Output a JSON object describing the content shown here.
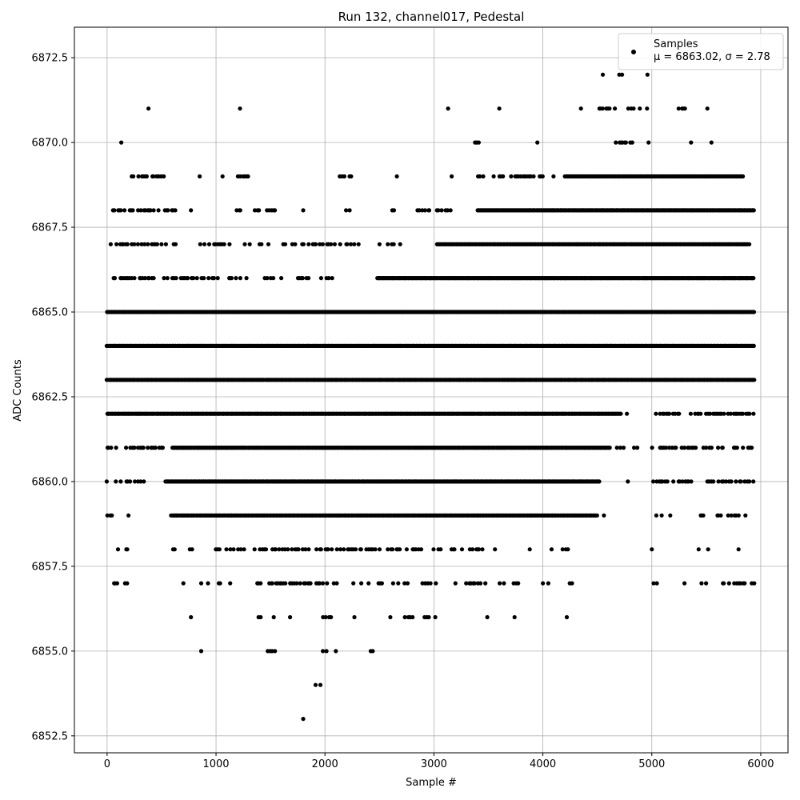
{
  "chart_data": {
    "type": "scatter",
    "title": "Run 132, channel017, Pedestal",
    "xlabel": "Sample #",
    "ylabel": "ADC Counts",
    "xlim": [
      -300,
      6250
    ],
    "ylim": [
      6852.0,
      6873.4
    ],
    "xticks": [
      0,
      1000,
      2000,
      3000,
      4000,
      5000,
      6000
    ],
    "xtick_labels": [
      "0",
      "1000",
      "2000",
      "3000",
      "4000",
      "5000",
      "6000"
    ],
    "yticks": [
      6852.5,
      6855.0,
      6857.5,
      6860.0,
      6862.5,
      6865.0,
      6867.5,
      6870.0,
      6872.5
    ],
    "ytick_labels": [
      "6852.5",
      "6855.0",
      "6857.5",
      "6860.0",
      "6862.5",
      "6865.0",
      "6867.5",
      "6870.0",
      "6872.5"
    ],
    "grid": true,
    "legend": {
      "placement": "top-right",
      "entries": [
        "Samples",
        "μ = 6863.02, σ = 2.78"
      ]
    },
    "series": [
      {
        "name": "Samples",
        "color": "#000000",
        "n_samples": 5950,
        "value_range": [
          6853,
          6872
        ],
        "level_spans": [
          {
            "y": 6853,
            "x": [
              [
                1800,
                1800
              ]
            ]
          },
          {
            "y": 6854,
            "x": [
              [
                1920,
                1980
              ]
            ]
          },
          {
            "y": 6855,
            "x": [
              [
                870,
                890
              ],
              [
                1430,
                1560
              ],
              [
                1980,
                2030
              ],
              [
                2100,
                2100
              ],
              [
                2420,
                2460
              ]
            ]
          },
          {
            "y": 6856,
            "x": [
              [
                770,
                770
              ],
              [
                1380,
                1460
              ],
              [
                1530,
                1530
              ],
              [
                1680,
                1680
              ],
              [
                1980,
                2070
              ],
              [
                2270,
                2270
              ],
              [
                2600,
                2600
              ],
              [
                2730,
                2820
              ],
              [
                2920,
                3030
              ],
              [
                3490,
                3490
              ],
              [
                3740,
                3740
              ],
              [
                4220,
                4220
              ]
            ]
          },
          {
            "y": 6857,
            "x": [
              [
                60,
                120
              ],
              [
                170,
                190
              ],
              [
                700,
                700
              ],
              [
                870,
                890
              ],
              [
                930,
                1050
              ],
              [
                1130,
                1130
              ],
              [
                1360,
                2400
              ],
              [
                2400,
                2780
              ],
              [
                2900,
                3020
              ],
              [
                3200,
                3500
              ],
              [
                3600,
                3800
              ],
              [
                4000,
                4050
              ],
              [
                4250,
                4300
              ],
              [
                5020,
                5060
              ],
              [
                5300,
                5300
              ],
              [
                5460,
                5500
              ],
              [
                5650,
                5940
              ]
            ]
          },
          {
            "y": 6858,
            "x": [
              [
                100,
                100
              ],
              [
                170,
                200
              ],
              [
                600,
                620
              ],
              [
                700,
                780
              ],
              [
                1000,
                1260
              ],
              [
                1360,
                2540
              ],
              [
                2560,
                2900
              ],
              [
                3000,
                3460
              ],
              [
                3560,
                3560
              ],
              [
                3880,
                3880
              ],
              [
                4080,
                4080
              ],
              [
                4180,
                4230
              ],
              [
                5000,
                5000
              ],
              [
                5400,
                5620
              ],
              [
                5800,
                5820
              ]
            ]
          },
          {
            "y": 6859,
            "x": [
              [
                0,
                60
              ],
              [
                130,
                150
              ],
              [
                200,
                250
              ],
              [
                590,
                3000
              ],
              [
                3000,
                4500
              ],
              [
                4560,
                4560
              ],
              [
                5040,
                5200
              ],
              [
                5380,
                5500
              ],
              [
                5600,
                5870
              ]
            ]
          },
          {
            "y": 6860,
            "x": [
              [
                0,
                40
              ],
              [
                80,
                350
              ],
              [
                540,
                4520
              ],
              [
                4780,
                4780
              ],
              [
                5020,
                5940
              ]
            ]
          },
          {
            "y": 6861,
            "x": [
              [
                0,
                520
              ],
              [
                600,
                4620
              ],
              [
                4680,
                4750
              ],
              [
                4800,
                4870
              ],
              [
                5000,
                5940
              ]
            ]
          },
          {
            "y": 6862,
            "x": [
              [
                0,
                4720
              ],
              [
                4760,
                4780
              ],
              [
                4850,
                4860
              ],
              [
                5000,
                5940
              ]
            ]
          },
          {
            "y": 6863,
            "x": [
              [
                0,
                5940
              ]
            ]
          },
          {
            "y": 6864,
            "x": [
              [
                0,
                5940
              ]
            ]
          },
          {
            "y": 6865,
            "x": [
              [
                0,
                5940
              ]
            ]
          },
          {
            "y": 6866,
            "x": [
              [
                40,
                1030
              ],
              [
                1100,
                1300
              ],
              [
                1450,
                1850
              ],
              [
                1950,
                2100
              ],
              [
                2480,
                5940
              ]
            ]
          },
          {
            "y": 6867,
            "x": [
              [
                40,
                660
              ],
              [
                820,
                1160
              ],
              [
                1230,
                1500
              ],
              [
                1600,
                2350
              ],
              [
                2500,
                2700
              ],
              [
                3030,
                5900
              ]
            ]
          },
          {
            "y": 6868,
            "x": [
              [
                50,
                630
              ],
              [
                770,
                770
              ],
              [
                1130,
                1260
              ],
              [
                1350,
                1550
              ],
              [
                1800,
                1800
              ],
              [
                2180,
                2250
              ],
              [
                2600,
                2680
              ],
              [
                2850,
                3160
              ],
              [
                3400,
                5940
              ]
            ]
          },
          {
            "y": 6869,
            "x": [
              [
                220,
                620
              ],
              [
                850,
                850
              ],
              [
                1060,
                1060
              ],
              [
                1200,
                1300
              ],
              [
                2140,
                2240
              ],
              [
                2660,
                2660
              ],
              [
                3160,
                3180
              ],
              [
                3400,
                3460
              ],
              [
                3550,
                4100
              ],
              [
                4200,
                5840
              ]
            ]
          },
          {
            "y": 6870,
            "x": [
              [
                130,
                130
              ],
              [
                420,
                450
              ],
              [
                3380,
                3420
              ],
              [
                3950,
                4000
              ],
              [
                4640,
                4820
              ],
              [
                4970,
                4970
              ],
              [
                5360,
                5360
              ],
              [
                5530,
                5550
              ]
            ]
          },
          {
            "y": 6871,
            "x": [
              [
                380,
                380
              ],
              [
                1220,
                1220
              ],
              [
                3130,
                3130
              ],
              [
                3600,
                3600
              ],
              [
                4330,
                4360
              ],
              [
                4500,
                4680
              ],
              [
                4780,
                4900
              ],
              [
                4940,
                4990
              ],
              [
                5240,
                5320
              ],
              [
                5510,
                5510
              ]
            ]
          },
          {
            "y": 6872,
            "x": [
              [
                4550,
                4550
              ],
              [
                4680,
                4730
              ],
              [
                4960,
                4960
              ]
            ]
          }
        ]
      }
    ]
  }
}
